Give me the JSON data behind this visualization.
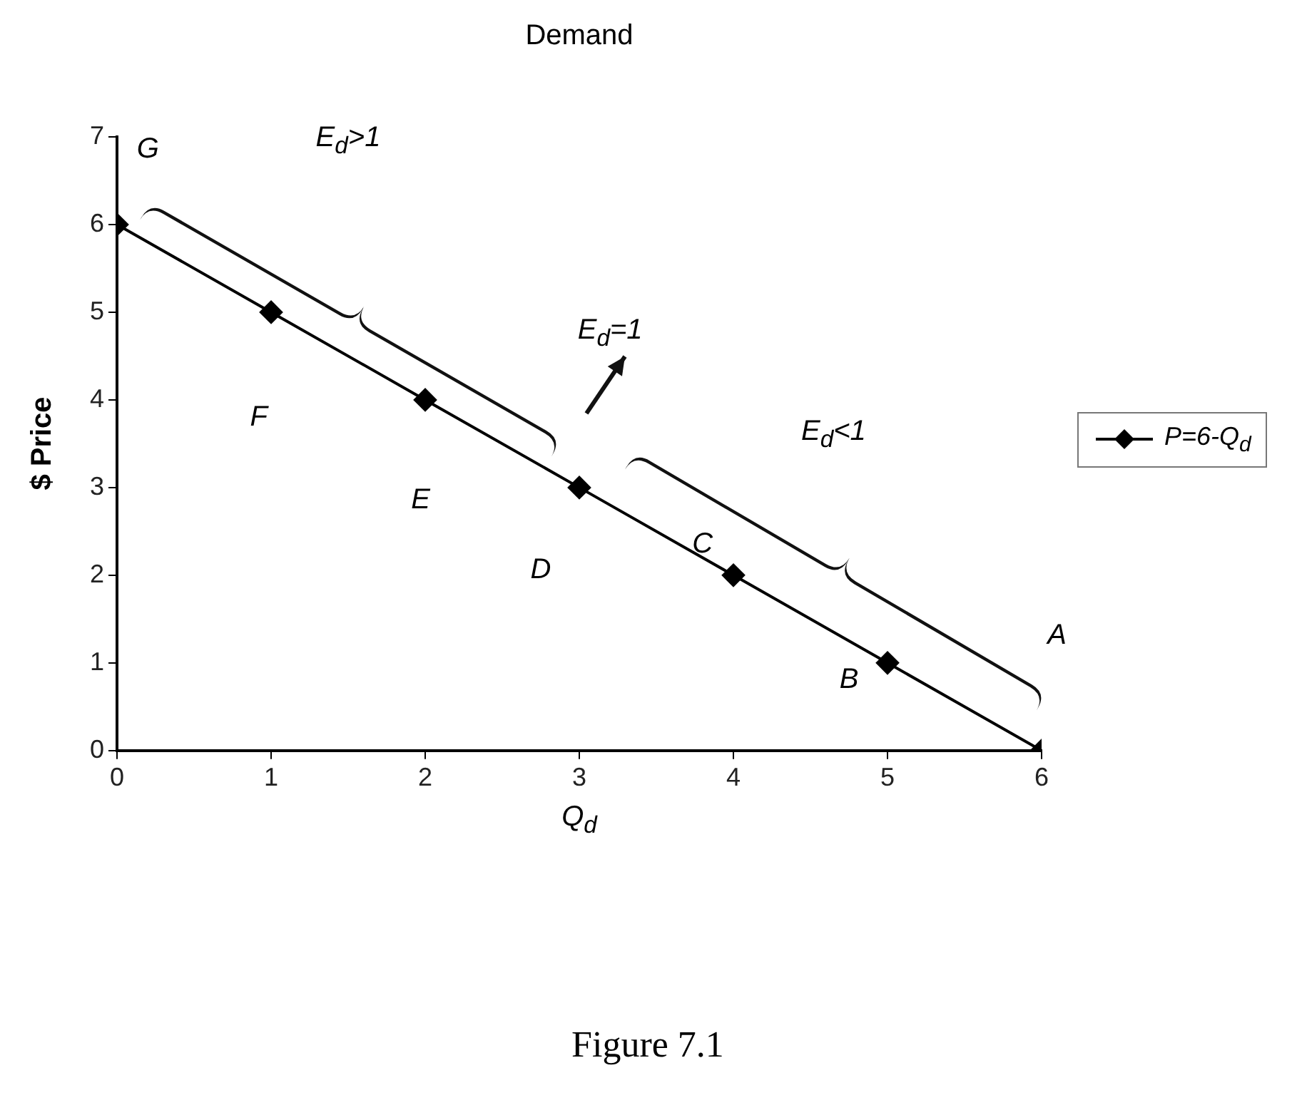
{
  "chart_data": {
    "type": "line",
    "title": "Demand",
    "xlabel": "Q$_{d}$",
    "ylabel": "$ Price",
    "x": [
      0,
      1,
      2,
      3,
      4,
      5,
      6
    ],
    "series": [
      {
        "name": "P=6-Q$_{d}$",
        "color": "#000000",
        "values": [
          6,
          5,
          4,
          3,
          2,
          1,
          0
        ]
      }
    ],
    "xlim": [
      0,
      6
    ],
    "xticks": [
      0,
      1,
      2,
      3,
      4,
      5,
      6
    ],
    "ylim": [
      0,
      7
    ],
    "yticks": [
      0,
      1,
      2,
      3,
      4,
      5,
      6,
      7
    ],
    "grid": false,
    "legend": "right",
    "marker": "diamond",
    "line_style": "solid",
    "annotations": [
      "G",
      "F",
      "E",
      "D",
      "C",
      "B",
      "A",
      "E$_{d}$>1",
      "E$_{d}$=1",
      "E$_{d}$<1",
      "Figure 7.1"
    ]
  }
}
